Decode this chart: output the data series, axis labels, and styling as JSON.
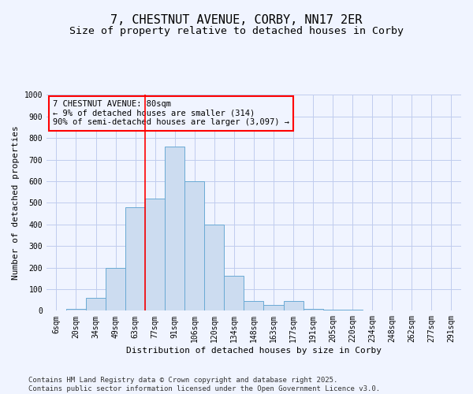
{
  "title_line1": "7, CHESTNUT AVENUE, CORBY, NN17 2ER",
  "title_line2": "Size of property relative to detached houses in Corby",
  "xlabel": "Distribution of detached houses by size in Corby",
  "ylabel": "Number of detached properties",
  "bar_color": "#ccdcf0",
  "bar_edge_color": "#6aaad4",
  "categories": [
    "6sqm",
    "20sqm",
    "34sqm",
    "49sqm",
    "63sqm",
    "77sqm",
    "91sqm",
    "106sqm",
    "120sqm",
    "134sqm",
    "148sqm",
    "163sqm",
    "177sqm",
    "191sqm",
    "205sqm",
    "220sqm",
    "234sqm",
    "248sqm",
    "262sqm",
    "277sqm",
    "291sqm"
  ],
  "values": [
    0,
    10,
    60,
    200,
    480,
    520,
    760,
    600,
    400,
    160,
    45,
    25,
    45,
    10,
    5,
    5,
    0,
    0,
    0,
    0,
    0
  ],
  "ylim": [
    0,
    1000
  ],
  "yticks": [
    0,
    100,
    200,
    300,
    400,
    500,
    600,
    700,
    800,
    900,
    1000
  ],
  "red_line_index": 5,
  "annotation_line1": "7 CHESTNUT AVENUE: 80sqm",
  "annotation_line2": "← 9% of detached houses are smaller (314)",
  "annotation_line3": "90% of semi-detached houses are larger (3,097) →",
  "footer_text": "Contains HM Land Registry data © Crown copyright and database right 2025.\nContains public sector information licensed under the Open Government Licence v3.0.",
  "background_color": "#f0f4ff",
  "grid_color": "#c0ccee",
  "title_fontsize": 11,
  "subtitle_fontsize": 9.5,
  "axis_label_fontsize": 8,
  "tick_fontsize": 7,
  "annotation_fontsize": 7.5,
  "footer_fontsize": 6.5
}
